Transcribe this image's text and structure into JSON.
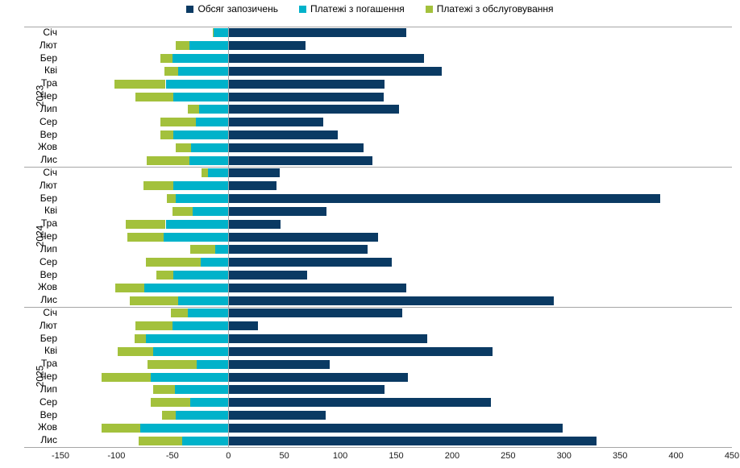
{
  "legend": [
    {
      "label": "Обсяг запозичень",
      "color": "#0a3a63"
    },
    {
      "label": "Платежі з погашення",
      "color": "#00b2ca"
    },
    {
      "label": "Платежі з обслуговування",
      "color": "#a3c13c"
    }
  ],
  "colors": {
    "borrowings": "#0a3a63",
    "repayment": "#00b2ca",
    "service": "#a3c13c",
    "axis": "#a6a6a6",
    "text": "#000000"
  },
  "chart_data": {
    "type": "bar",
    "orientation": "horizontal",
    "stacking": "negative side stacked (repayment + service), positive single series",
    "title": "",
    "xlabel": "",
    "ylabel": "",
    "xlim": [
      -150,
      450
    ],
    "x_ticks": [
      -150,
      -100,
      -50,
      0,
      50,
      100,
      150,
      200,
      250,
      300,
      350,
      400,
      450
    ],
    "grid": "none",
    "legend_position": "top",
    "series_names": [
      "Обсяг запозичень",
      "Платежі з погашення",
      "Платежі з обслуговування"
    ],
    "groups": [
      {
        "year": "2023",
        "rows": [
          {
            "month": "Січ",
            "borrowings": 158,
            "repayment": -13,
            "service": -1
          },
          {
            "month": "Лют",
            "borrowings": 68,
            "repayment": -35,
            "service": -12
          },
          {
            "month": "Бер",
            "borrowings": 174,
            "repayment": -50,
            "service": -11
          },
          {
            "month": "Кві",
            "borrowings": 190,
            "repayment": -45,
            "service": -12
          },
          {
            "month": "Тра",
            "borrowings": 139,
            "repayment": -56,
            "service": -46
          },
          {
            "month": "Чер",
            "borrowings": 138,
            "repayment": -49,
            "service": -34
          },
          {
            "month": "Лип",
            "borrowings": 152,
            "repayment": -26,
            "service": -10
          },
          {
            "month": "Сер",
            "borrowings": 84,
            "repayment": -29,
            "service": -32
          },
          {
            "month": "Вер",
            "borrowings": 97,
            "repayment": -49,
            "service": -12
          },
          {
            "month": "Жов",
            "borrowings": 120,
            "repayment": -33,
            "service": -14
          },
          {
            "month": "Лис",
            "borrowings": 128,
            "repayment": -35,
            "service": -38
          }
        ]
      },
      {
        "year": "2024",
        "rows": [
          {
            "month": "Січ",
            "borrowings": 45,
            "repayment": -18,
            "service": -6
          },
          {
            "month": "Лют",
            "borrowings": 42,
            "repayment": -49,
            "service": -27
          },
          {
            "month": "Бер",
            "borrowings": 385,
            "repayment": -47,
            "service": -8
          },
          {
            "month": "Кві",
            "borrowings": 87,
            "repayment": -32,
            "service": -18
          },
          {
            "month": "Тра",
            "borrowings": 46,
            "repayment": -56,
            "service": -36
          },
          {
            "month": "Чер",
            "borrowings": 133,
            "repayment": -58,
            "service": -32
          },
          {
            "month": "Лип",
            "borrowings": 124,
            "repayment": -12,
            "service": -22
          },
          {
            "month": "Сер",
            "borrowings": 145,
            "repayment": -25,
            "service": -49
          },
          {
            "month": "Вер",
            "borrowings": 70,
            "repayment": -49,
            "service": -15
          },
          {
            "month": "Жов",
            "borrowings": 158,
            "repayment": -75,
            "service": -26
          },
          {
            "month": "Лис",
            "borrowings": 290,
            "repayment": -45,
            "service": -43
          }
        ]
      },
      {
        "year": "2025",
        "rows": [
          {
            "month": "Січ",
            "borrowings": 155,
            "repayment": -36,
            "service": -15
          },
          {
            "month": "Лют",
            "borrowings": 26,
            "repayment": -50,
            "service": -33
          },
          {
            "month": "Бер",
            "borrowings": 177,
            "repayment": -74,
            "service": -10
          },
          {
            "month": "Кві",
            "borrowings": 235,
            "repayment": -67,
            "service": -32
          },
          {
            "month": "Тра",
            "borrowings": 90,
            "repayment": -28,
            "service": -44
          },
          {
            "month": "Чер",
            "borrowings": 160,
            "repayment": -69,
            "service": -44
          },
          {
            "month": "Лип",
            "borrowings": 139,
            "repayment": -48,
            "service": -19
          },
          {
            "month": "Сер",
            "borrowings": 234,
            "repayment": -34,
            "service": -35
          },
          {
            "month": "Вер",
            "borrowings": 86,
            "repayment": -47,
            "service": -12
          },
          {
            "month": "Жов",
            "borrowings": 298,
            "repayment": -79,
            "service": -34
          },
          {
            "month": "Лис",
            "borrowings": 328,
            "repayment": -41,
            "service": -39
          }
        ]
      }
    ]
  }
}
